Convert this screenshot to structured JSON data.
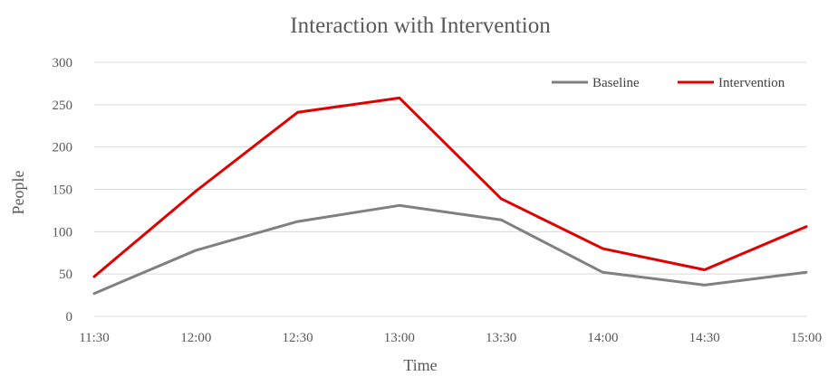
{
  "chart_data": {
    "type": "line",
    "title": "Interaction with Intervention",
    "xlabel": "Time",
    "ylabel": "People",
    "categories": [
      "11:30",
      "12:00",
      "12:30",
      "13:00",
      "13:30",
      "14:00",
      "14:30",
      "15:00"
    ],
    "ylim": [
      0,
      300
    ],
    "yticks": [
      0,
      50,
      100,
      150,
      200,
      250,
      300
    ],
    "grid": true,
    "legend_position": "top-right",
    "series": [
      {
        "name": "Baseline",
        "color": "#808080",
        "values": [
          27,
          78,
          112,
          131,
          114,
          52,
          37,
          52
        ]
      },
      {
        "name": "Intervention",
        "color": "#e00000",
        "values": [
          47,
          148,
          241,
          258,
          139,
          80,
          55,
          106
        ]
      }
    ]
  }
}
